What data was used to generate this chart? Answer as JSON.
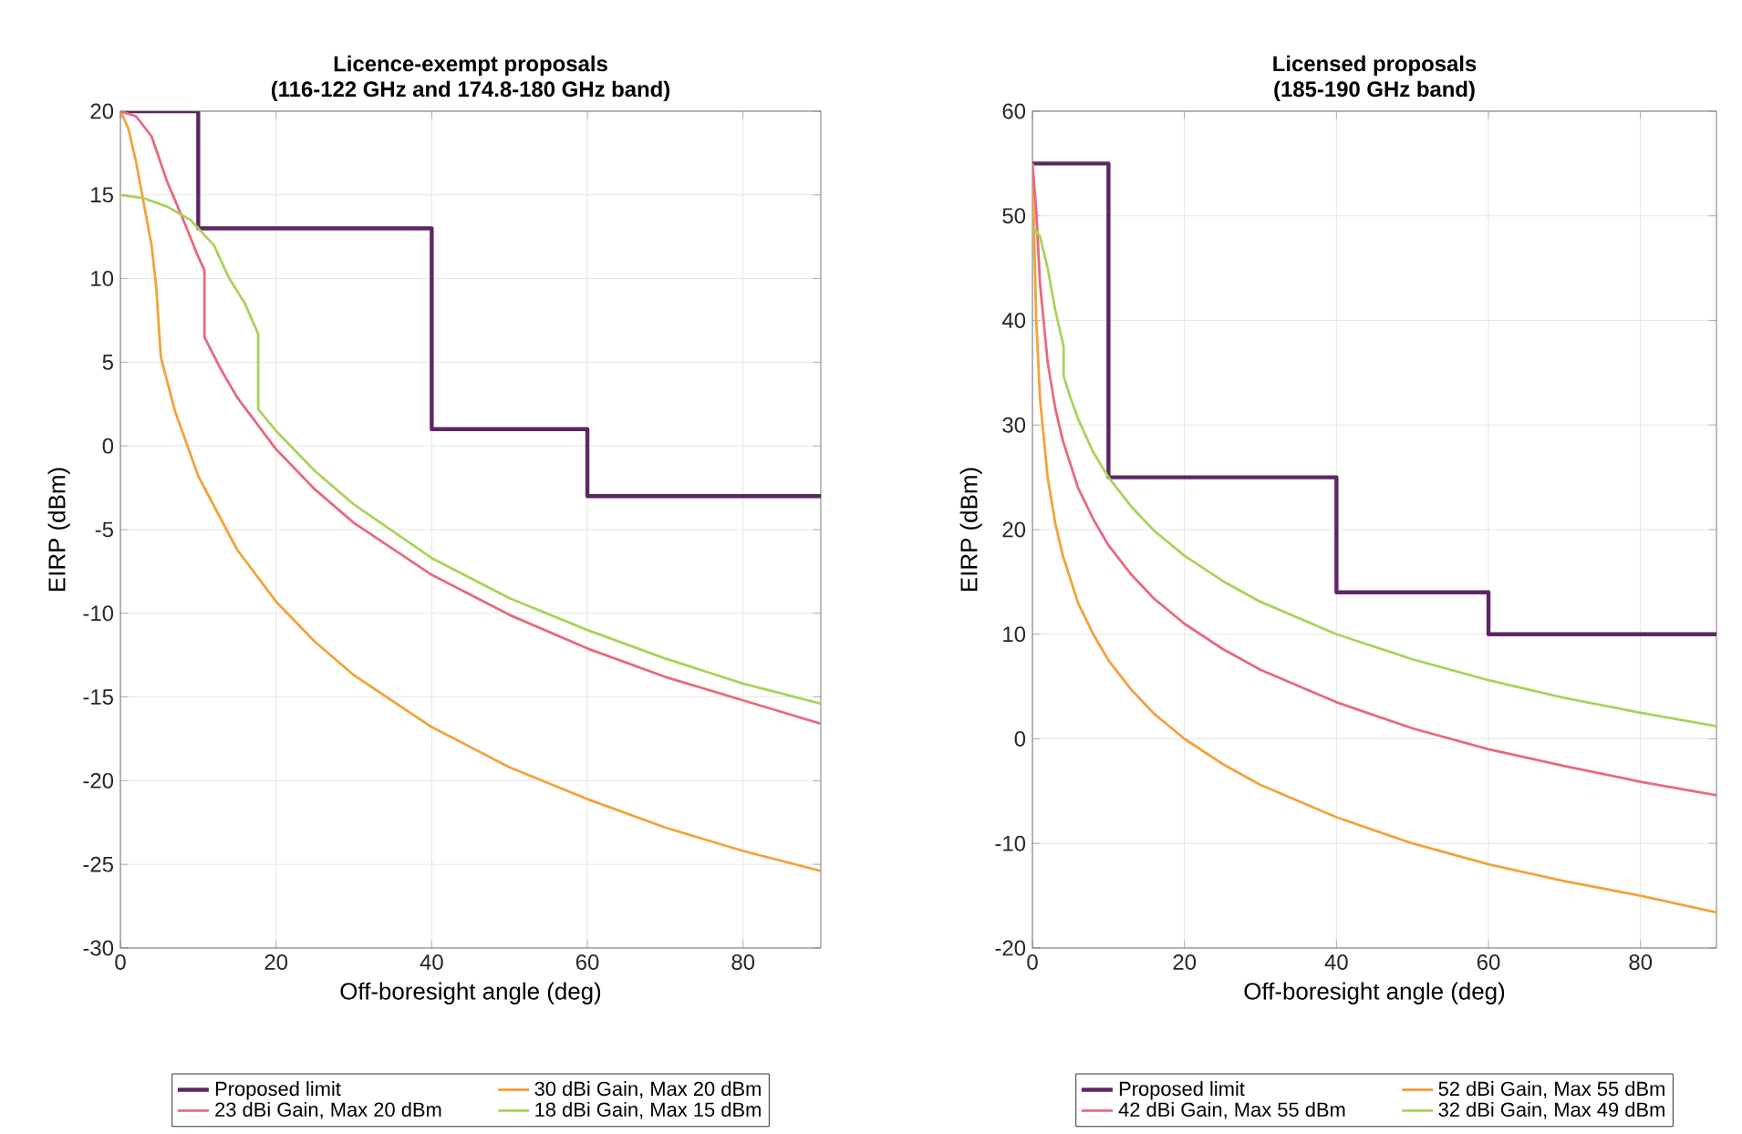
{
  "chart_data": [
    {
      "type": "line",
      "title": "Licence-exempt proposals",
      "subtitle": "(116-122 GHz and 174.8-180 GHz band)",
      "xlabel": "Off-boresight angle (deg)",
      "ylabel": "EIRP (dBm)",
      "xlim": [
        0,
        90
      ],
      "xticks": [
        0,
        20,
        40,
        60,
        80
      ],
      "ylim": [
        -30,
        20
      ],
      "yticks": [
        -30,
        -25,
        -20,
        -15,
        -10,
        -5,
        0,
        5,
        10,
        15,
        20
      ],
      "grid": true,
      "legend": "bottom",
      "series": [
        {
          "name": "Proposed limit",
          "color": "#5e2566",
          "x": [
            0,
            10,
            10,
            40,
            40,
            60,
            60,
            90
          ],
          "values": [
            20,
            20,
            13,
            13,
            1,
            1,
            -3,
            -3
          ]
        },
        {
          "name": "30 dBi Gain, Max 20 dBm",
          "color": "#f4a23a",
          "x": [
            0,
            1,
            2,
            3,
            4,
            4.6,
            5.2,
            7,
            10,
            15,
            20,
            25,
            30,
            40,
            50,
            60,
            70,
            80,
            90
          ],
          "values": [
            20,
            19,
            17,
            14.5,
            12,
            9.5,
            5.3,
            2.1,
            -1.8,
            -6.2,
            -9.3,
            -11.7,
            -13.7,
            -16.8,
            -19.2,
            -21.1,
            -22.8,
            -24.2,
            -25.4
          ]
        },
        {
          "name": "23 dBi Gain, Max 20 dBm",
          "color": "#e8697f",
          "x": [
            0,
            2,
            4,
            6,
            8,
            10,
            10.8,
            10.8,
            13,
            15,
            20,
            25,
            30,
            40,
            50,
            60,
            70,
            80,
            90
          ],
          "values": [
            20,
            19.7,
            18.5,
            15.8,
            13.6,
            11.3,
            10.5,
            6.5,
            4.5,
            2.9,
            -0.2,
            -2.6,
            -4.6,
            -7.7,
            -10.1,
            -12.1,
            -13.8,
            -15.2,
            -16.6
          ]
        },
        {
          "name": "18 dBi Gain, Max 15 dBm",
          "color": "#a8d35a",
          "x": [
            0,
            3,
            6,
            9,
            12,
            14,
            16,
            17.7,
            17.7,
            20,
            25,
            30,
            40,
            50,
            60,
            70,
            80,
            90
          ],
          "values": [
            15,
            14.8,
            14.3,
            13.5,
            12,
            10,
            8.5,
            6.7,
            2.2,
            0.9,
            -1.5,
            -3.5,
            -6.7,
            -9.1,
            -11,
            -12.7,
            -14.2,
            -15.4
          ]
        }
      ]
    },
    {
      "type": "line",
      "title": "Licensed proposals",
      "subtitle": "(185-190 GHz band)",
      "xlabel": "Off-boresight angle (deg)",
      "ylabel": "EIRP (dBm)",
      "xlim": [
        0,
        90
      ],
      "xticks": [
        0,
        20,
        40,
        60,
        80
      ],
      "ylim": [
        -20,
        60
      ],
      "yticks": [
        -20,
        -10,
        0,
        10,
        20,
        30,
        40,
        50,
        60
      ],
      "grid": true,
      "legend": "bottom",
      "series": [
        {
          "name": "Proposed limit",
          "color": "#5e2566",
          "x": [
            0,
            10,
            10,
            40,
            40,
            60,
            60,
            90
          ],
          "values": [
            55,
            55,
            25,
            25,
            14,
            14,
            10,
            10
          ]
        },
        {
          "name": "52 dBi Gain, Max 55 dBm",
          "color": "#f4a23a",
          "x": [
            0,
            0.5,
            1,
            2,
            3,
            4,
            6,
            8,
            10,
            13,
            16,
            20,
            25,
            30,
            40,
            50,
            60,
            70,
            80,
            90
          ],
          "values": [
            55,
            40,
            32.5,
            25,
            20.6,
            17.5,
            13,
            10,
            7.5,
            4.7,
            2.4,
            0,
            -2.4,
            -4.4,
            -7.5,
            -10,
            -12,
            -13.6,
            -15,
            -16.6
          ]
        },
        {
          "name": "42 dBi Gain, Max 55 dBm",
          "color": "#e8697f",
          "x": [
            0,
            0.5,
            1,
            2,
            3,
            4,
            6,
            8,
            10,
            13,
            16,
            20,
            25,
            30,
            40,
            50,
            60,
            70,
            80,
            90
          ],
          "values": [
            55,
            50.5,
            43.5,
            36,
            31.6,
            28.5,
            24,
            21,
            18.5,
            15.7,
            13.4,
            11,
            8.6,
            6.6,
            3.5,
            1,
            -1,
            -2.6,
            -4.1,
            -5.4
          ]
        },
        {
          "name": "32 dBi Gain, Max 49 dBm",
          "color": "#a8d35a",
          "x": [
            0,
            1,
            2,
            3,
            4.1,
            4.1,
            5,
            6,
            8,
            10,
            13,
            16,
            20,
            25,
            30,
            40,
            50,
            60,
            70,
            80,
            90
          ],
          "values": [
            49,
            48,
            45,
            41,
            37.5,
            34.7,
            32.6,
            30.6,
            27.4,
            25,
            22.2,
            19.9,
            17.5,
            15.1,
            13.1,
            10,
            7.6,
            5.6,
            3.9,
            2.5,
            1.2
          ]
        }
      ]
    }
  ]
}
